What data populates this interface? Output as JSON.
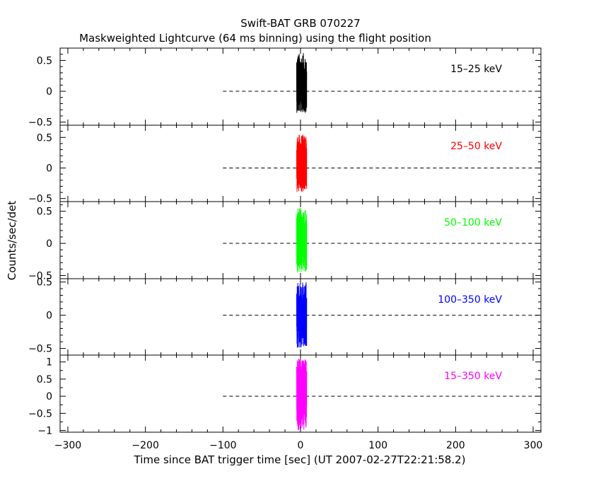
{
  "chart_data": {
    "type": "line",
    "title": "Swift-BAT GRB 070227",
    "subtitle": "Maskweighted Lightcurve (64 ms binning) using the flight position",
    "xlabel": "Time since BAT trigger time [sec] (UT 2007-02-27T22:21:58.2)",
    "ylabel": "Counts/sec/det",
    "xlim": [
      -310,
      310
    ],
    "x_ticks": [
      -300,
      -200,
      -100,
      0,
      100,
      200,
      300
    ],
    "x_tick_labels": [
      "−300",
      "−200",
      "−100",
      "0",
      "100",
      "200",
      "300"
    ],
    "baseline": {
      "style": "dashed",
      "value": 0,
      "x_range": [
        -100,
        310
      ]
    },
    "panels": [
      {
        "band": "15–25 keV",
        "color": "#000000",
        "ylim": [
          -0.55,
          0.7
        ],
        "y_ticks": [
          -0.5,
          0,
          0.5
        ],
        "y_tick_labels": [
          "−0.5",
          "0",
          "0.5"
        ],
        "burst": {
          "x_range": [
            -5,
            8
          ],
          "y_max": 0.62,
          "y_min": -0.35
        }
      },
      {
        "band": "25–50 keV",
        "color": "#ff0000",
        "ylim": [
          -0.55,
          0.7
        ],
        "y_ticks": [
          -0.5,
          0,
          0.5
        ],
        "y_tick_labels": [
          "−0.5",
          "0",
          "0.5"
        ],
        "burst": {
          "x_range": [
            -5,
            8
          ],
          "y_max": 0.55,
          "y_min": -0.4
        }
      },
      {
        "band": "50–100 keV",
        "color": "#00ff00",
        "ylim": [
          -0.55,
          0.65
        ],
        "y_ticks": [
          -0.5,
          0,
          0.5
        ],
        "y_tick_labels": [
          "−0.5",
          "0",
          "0.5"
        ],
        "burst": {
          "x_range": [
            -5,
            8
          ],
          "y_max": 0.55,
          "y_min": -0.45
        }
      },
      {
        "band": "100–350 keV",
        "color": "#0000ff",
        "ylim": [
          -0.6,
          0.55
        ],
        "y_ticks": [
          -0.5,
          0,
          0.5
        ],
        "y_tick_labels": [
          "−0.5",
          "0",
          "0.5"
        ],
        "burst": {
          "x_range": [
            -5,
            8
          ],
          "y_max": 0.5,
          "y_min": -0.5
        }
      },
      {
        "band": "15–350 keV",
        "color": "#ff00ff",
        "ylim": [
          -1.05,
          1.2
        ],
        "y_ticks": [
          -1,
          -0.5,
          0,
          0.5,
          1
        ],
        "y_tick_labels": [
          "−1",
          "−0.5",
          "0",
          "0.5",
          "1"
        ],
        "burst": {
          "x_range": [
            -5,
            8
          ],
          "y_max": 1.1,
          "y_min": -1.0
        }
      }
    ]
  }
}
